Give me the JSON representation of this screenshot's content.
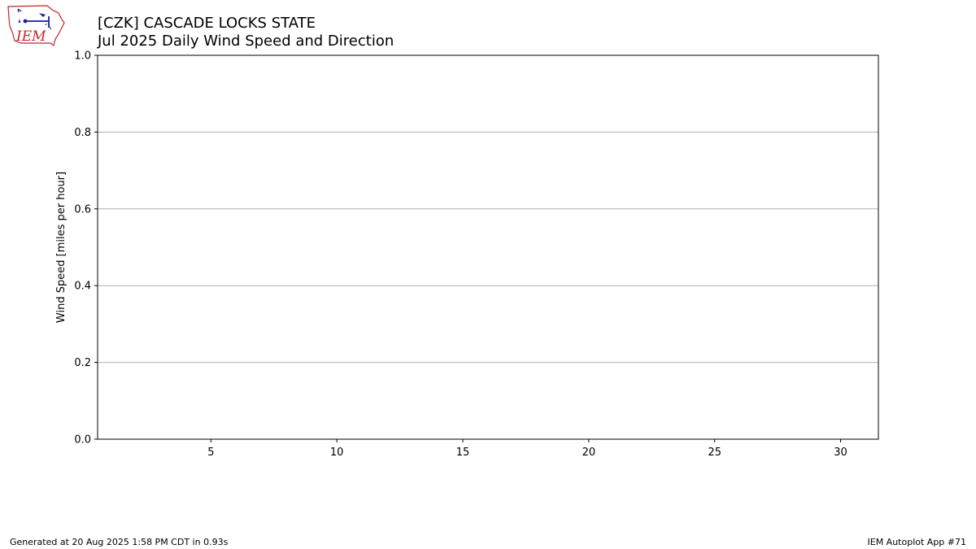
{
  "header": {
    "title": "[CZK] CASCADE LOCKS STATE",
    "subtitle": "Jul 2025 Daily Wind Speed and Direction"
  },
  "logo": {
    "text": "IEM"
  },
  "footer": {
    "generated": "Generated at 20 Aug 2025 1:58 PM CDT in 0.93s",
    "app": "IEM Autoplot App #71"
  },
  "chart_data": {
    "type": "bar",
    "title": "[CZK] CASCADE LOCKS STATE\nJul 2025 Daily Wind Speed and Direction",
    "ylabel": "Wind Speed [miles per hour]",
    "xlabel": "",
    "xlim": [
      0.5,
      31.5
    ],
    "ylim": [
      0.0,
      1.0
    ],
    "x_ticks": [
      5,
      10,
      15,
      20,
      25,
      30
    ],
    "y_ticks": [
      0.0,
      0.2,
      0.4,
      0.6,
      0.8,
      1.0
    ],
    "y_tick_labels": [
      "0.0",
      "0.2",
      "0.4",
      "0.6",
      "0.8",
      "1.0"
    ],
    "grid": "y",
    "series": [],
    "colors": {
      "grid": "#b0b0b0",
      "axis": "#000000",
      "logo_red": "#c0282d",
      "logo_blue": "#1a1aa6"
    }
  }
}
